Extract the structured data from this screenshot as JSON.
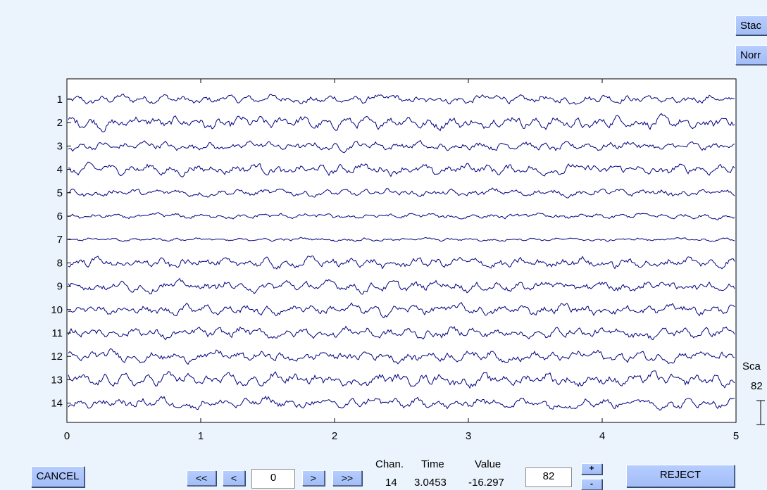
{
  "side_buttons": {
    "stack": "Stac",
    "norm": "Norr"
  },
  "chart_data": {
    "type": "line",
    "title": "",
    "xlabel": "",
    "ylabel": "",
    "xlim": [
      0,
      5
    ],
    "x_ticks": [
      "0",
      "1",
      "2",
      "3",
      "4",
      "5"
    ],
    "channels": [
      "1",
      "2",
      "3",
      "4",
      "5",
      "6",
      "7",
      "8",
      "9",
      "10",
      "11",
      "12",
      "13",
      "14"
    ],
    "line_color": "#000080",
    "grid": false
  },
  "scale": {
    "label": "Sca",
    "value": "82"
  },
  "controls": {
    "cancel": "CANCEL",
    "first": "<<",
    "prev": "<",
    "position": "0",
    "next": ">",
    "last": ">>",
    "chan_header": "Chan.",
    "time_header": "Time",
    "value_header": "Value",
    "chan_value": "14",
    "time_value": "3.0453",
    "value_value": "-16.297",
    "scale_input": "82",
    "plus": "+",
    "minus": "-",
    "reject": "REJECT"
  }
}
